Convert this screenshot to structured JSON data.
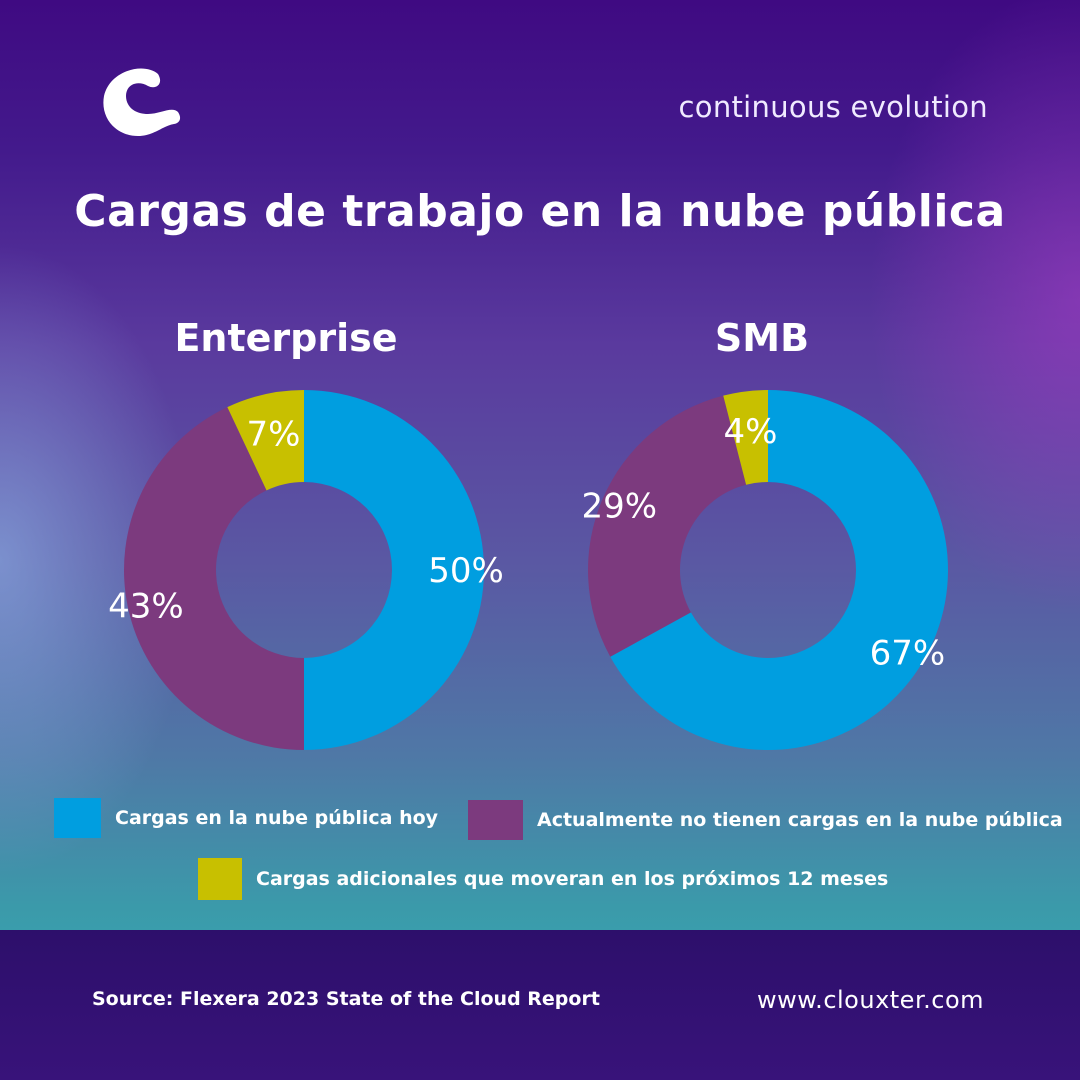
{
  "header": {
    "tagline": "continuous evolution",
    "title": "Cargas de trabajo en la nube pública"
  },
  "icons": {
    "logo": "clouxter-c-logo-icon"
  },
  "colors": {
    "today": "#009ee0",
    "none": "#7c3a7e",
    "additional": "#c8c000"
  },
  "chart_data": [
    {
      "type": "pie",
      "title": "Enterprise",
      "categories": [
        "Cargas en la nube pública hoy",
        "Actualmente no tienen cargas en la nube pública",
        "Cargas adicionales que moveran en los próximos 12 meses"
      ],
      "values": [
        50,
        43,
        7
      ],
      "labels": [
        "50%",
        "43%",
        "7%"
      ]
    },
    {
      "type": "pie",
      "title": "SMB",
      "categories": [
        "Cargas en la nube pública hoy",
        "Actualmente no tienen cargas en la nube pública",
        "Cargas adicionales que moveran en los próximos 12 meses"
      ],
      "values": [
        67,
        29,
        4
      ],
      "labels": [
        "67%",
        "29%",
        "4%"
      ]
    }
  ],
  "legend": [
    {
      "label": "Cargas en la nube pública hoy",
      "color": "#009ee0"
    },
    {
      "label": "Actualmente no tienen cargas en la nube pública",
      "color": "#7c3a7e"
    },
    {
      "label": "Cargas adicionales que moveran en los próximos 12 meses",
      "color": "#c8c000"
    }
  ],
  "footer": {
    "source": "Source: Flexera 2023 State of the Cloud Report",
    "website": "www.clouxter.com"
  }
}
